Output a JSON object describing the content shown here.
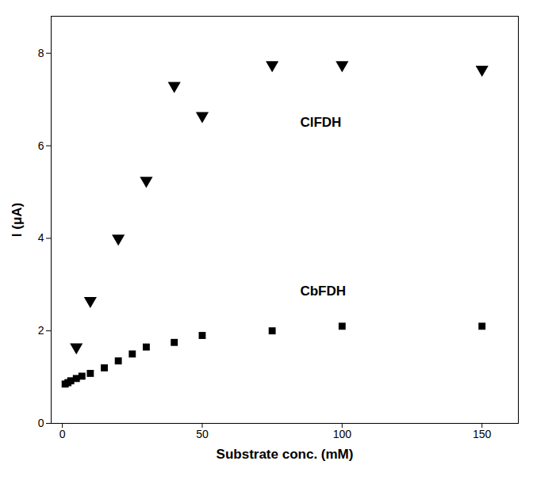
{
  "chart_data": {
    "type": "scatter",
    "xlabel": "Substrate conc. (mM)",
    "ylabel": "I (μA)",
    "xlim": [
      -4,
      163
    ],
    "ylim": [
      0,
      8.8
    ],
    "xticks": [
      0,
      50,
      100,
      150
    ],
    "yticks": [
      0,
      2,
      4,
      6,
      8
    ],
    "grid": false,
    "series": [
      {
        "name": "ClFDH",
        "color": "#000000",
        "marker": "triangle_down",
        "x": [
          5,
          10,
          20,
          30,
          40,
          50,
          75,
          100,
          150
        ],
        "values": [
          1.65,
          2.65,
          4.0,
          5.25,
          7.3,
          6.65,
          7.75,
          7.75,
          7.65
        ]
      },
      {
        "name": "CbFDH",
        "color": "#000000",
        "marker": "square",
        "x": [
          1,
          2,
          3,
          5,
          7,
          10,
          15,
          20,
          25,
          30,
          40,
          50,
          75,
          100,
          150
        ],
        "values": [
          0.85,
          0.88,
          0.92,
          0.97,
          1.02,
          1.08,
          1.2,
          1.35,
          1.5,
          1.65,
          1.75,
          1.9,
          2.0,
          2.1,
          2.1
        ]
      }
    ],
    "annotations": [
      {
        "text": "ClFDH",
        "x": 85,
        "y": 6.5,
        "color": "#000000"
      },
      {
        "text": "CbFDH",
        "x": 85,
        "y": 2.85,
        "color": "#000000"
      }
    ]
  }
}
